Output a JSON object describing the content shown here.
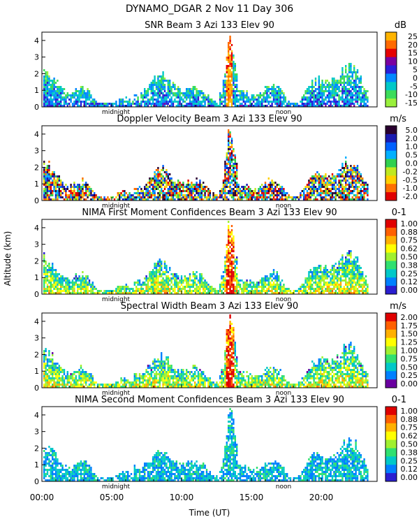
{
  "figure": {
    "title": "DYNAMO_DGAR    2 Nov 11 Day 306",
    "ylabel": "Altitude (km)",
    "xlabel": "Time (UT)",
    "x_tick_labels": [
      "00:00",
      "05:00",
      "10:00",
      "15:00",
      "20:00"
    ],
    "midnight_label": "midnight",
    "noon_label": "noon"
  },
  "chart_data": [
    {
      "type": "heatmap",
      "title": "SNR Beam 3 Azi 133 Elev 90",
      "unit": "dB",
      "xlim": [
        0,
        24
      ],
      "ylim": [
        0,
        4.5
      ],
      "y_ticks": [
        "0",
        "1",
        "2",
        "3",
        "4"
      ],
      "colorbar_labels": [
        "25",
        "20",
        "15",
        "10",
        "5",
        "0",
        "-5",
        "-10",
        "-15"
      ],
      "colorbar_colors": [
        "#ffb400",
        "#ff6a00",
        "#e60000",
        "#7a00a0",
        "#2a1ed8",
        "#0088ff",
        "#00c8c8",
        "#3cdc5a",
        "#9af03c"
      ]
    },
    {
      "type": "heatmap",
      "title": "Doppler Velocity Beam 3 Azi 133 Elev 90",
      "unit": "m/s",
      "xlim": [
        0,
        24
      ],
      "ylim": [
        0,
        4.5
      ],
      "y_ticks": [
        "0",
        "1",
        "2",
        "3",
        "4"
      ],
      "colorbar_labels": [
        "5.0",
        "2.0",
        "1.0",
        "0.5",
        "0.0",
        "-0.2",
        "-0.5",
        "-1.0",
        "-2.0"
      ],
      "colorbar_colors": [
        "#2a0030",
        "#1a1ab0",
        "#0060ff",
        "#00b0ff",
        "#30d050",
        "#c0e820",
        "#ffd000",
        "#ff7000",
        "#e00000"
      ]
    },
    {
      "type": "heatmap",
      "title": "NIMA First Moment Confidences Beam 3 Azi 133 Elev 90",
      "unit": "0-1",
      "xlim": [
        0,
        24
      ],
      "ylim": [
        0,
        4.5
      ],
      "y_ticks": [
        "0",
        "1",
        "2",
        "3",
        "4"
      ],
      "colorbar_labels": [
        "1.00",
        "0.88",
        "0.75",
        "0.62",
        "0.50",
        "0.38",
        "0.25",
        "0.12",
        "0.00"
      ],
      "colorbar_colors": [
        "#e00000",
        "#ff6000",
        "#ffb000",
        "#ffff00",
        "#a0f030",
        "#30e070",
        "#00c8c8",
        "#0080ff",
        "#2a1ed0"
      ]
    },
    {
      "type": "heatmap",
      "title": "Spectral Width Beam 3 Azi 133 Elev 90",
      "unit": "m/s",
      "xlim": [
        0,
        24
      ],
      "ylim": [
        0,
        4.5
      ],
      "y_ticks": [
        "0",
        "1",
        "2",
        "3",
        "4"
      ],
      "colorbar_labels": [
        "2.00",
        "1.75",
        "1.50",
        "1.25",
        "1.00",
        "0.75",
        "0.50",
        "0.25",
        "0.00"
      ],
      "colorbar_colors": [
        "#e00000",
        "#ff6000",
        "#ffb000",
        "#ffff00",
        "#a0f030",
        "#30e070",
        "#00c8c8",
        "#0080ff",
        "#6a00a0"
      ]
    },
    {
      "type": "heatmap",
      "title": "NIMA Second Moment Confidences Beam 3 Azi 133 Elev 90",
      "unit": "0-1",
      "xlim": [
        0,
        24
      ],
      "ylim": [
        0,
        4.5
      ],
      "y_ticks": [
        "0",
        "1",
        "2",
        "3",
        "4"
      ],
      "colorbar_labels": [
        "1.00",
        "0.88",
        "0.75",
        "0.62",
        "0.50",
        "0.38",
        "0.25",
        "0.12",
        "0.00"
      ],
      "colorbar_colors": [
        "#e00000",
        "#ff6000",
        "#ffb000",
        "#ffff00",
        "#a0f030",
        "#30e070",
        "#00c8c8",
        "#0080ff",
        "#2a1ed0"
      ]
    }
  ]
}
